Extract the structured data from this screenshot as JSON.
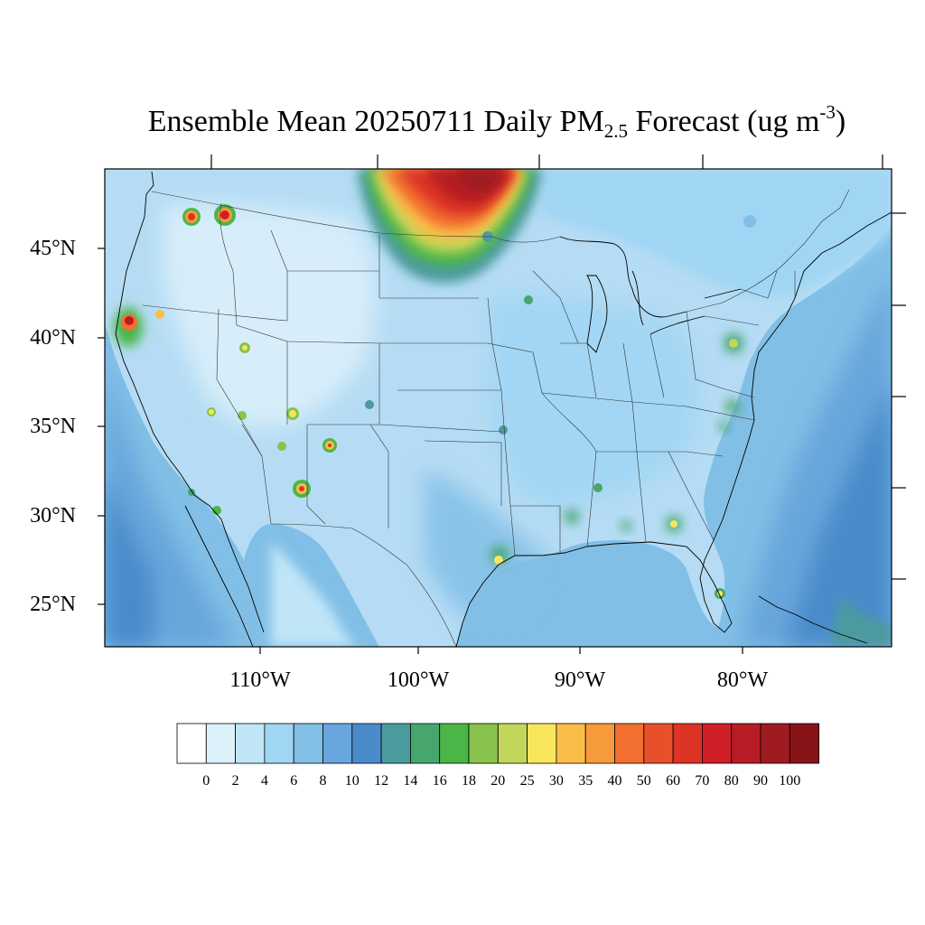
{
  "title": {
    "main": "Ensemble Mean 20250711 Daily PM",
    "sub": "2.5",
    "after": " Forecast (ug m",
    "sup": "-3",
    "close": ")"
  },
  "lat_labels": [
    "45°N",
    "40°N",
    "35°N",
    "30°N",
    "25°N"
  ],
  "lon_labels": [
    "110°W",
    "100°W",
    "90°W",
    "80°W"
  ],
  "colorbar": {
    "labels": [
      "0",
      "2",
      "4",
      "6",
      "8",
      "10",
      "12",
      "14",
      "16",
      "18",
      "20",
      "25",
      "30",
      "35",
      "40",
      "50",
      "60",
      "70",
      "80",
      "90",
      "100"
    ],
    "colors": [
      "#ffffff",
      "#ddf1fb",
      "#bfe5f7",
      "#a0d6f4",
      "#82bfe6",
      "#67a6dc",
      "#4a8bca",
      "#4b9b9e",
      "#47a66e",
      "#4bb548",
      "#87c34d",
      "#c2d659",
      "#f7e65b",
      "#f9bd48",
      "#f79a3c",
      "#f26f2f",
      "#e8502b",
      "#dd3425",
      "#cf1f27",
      "#b81c24",
      "#9e1b20",
      "#861417"
    ]
  },
  "map": {
    "plot_colors": {
      "background": "#b5dcf4",
      "ocean": "#82bfe6",
      "deep_ocean": "#67a6dc"
    }
  }
}
